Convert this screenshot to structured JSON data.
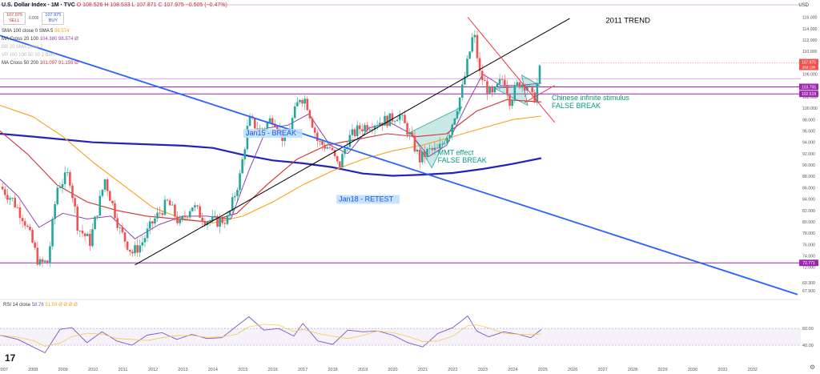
{
  "header": {
    "title": "U.S. Dollar Index · 1M · TVC",
    "ohlc": "O 108.526  H 108.533  L 107.871  C 107.975  −0.505 (−0.47%)",
    "sell_price": "107.975",
    "sell_label": "SELL",
    "spread": "0.000",
    "buy_price": "107.975",
    "buy_label": "BUY",
    "currency": "USD"
  },
  "indicators": [
    {
      "label": "SMA 100 close 0 SMA 5",
      "value": "98.574",
      "color": "#f7a21b"
    },
    {
      "label": "MA Cross 20 100",
      "value": "104.380  98.574  Ø",
      "color": "#8e44ad"
    },
    {
      "label": "BB 20 SMA close 2",
      "value": "",
      "color": "#bbbbbb"
    },
    {
      "label": "VP 100 100 50 30 2 Both",
      "value": "",
      "color": "#bbbbbb"
    },
    {
      "label": "MA Cross 50 200",
      "value": "101.097  91.159  Ø",
      "color": "#d32f2f"
    }
  ],
  "rsi": {
    "label": "RSI 14 close",
    "value": "58.76",
    "extra": "51.59  Ø  Ø  Ø  Ø",
    "levels": [
      "60.00",
      "40.00"
    ]
  },
  "chart_data": {
    "type": "line",
    "symbol": "U.S. Dollar Index",
    "timeframe": "1M",
    "ylim": [
      66.6,
      118.2
    ],
    "y_ticks": [
      67.9,
      69.3,
      72.0,
      74.0,
      76.0,
      78.0,
      80.0,
      82.0,
      84.0,
      86.0,
      88.0,
      90.0,
      92.0,
      94.0,
      96.0,
      98.0,
      100.0,
      102.0,
      104.0,
      106.0,
      108.0,
      110.0,
      112.0,
      114.0,
      116.0
    ],
    "x_ticks": [
      "2007",
      "2008",
      "2009",
      "2010",
      "2011",
      "2012",
      "2013",
      "2014",
      "2015",
      "2016",
      "2017",
      "2018",
      "2019",
      "2020",
      "2021",
      "2022",
      "2023",
      "2024",
      "2025",
      "2026",
      "2027",
      "2028",
      "2029",
      "2030",
      "2031",
      "2032"
    ],
    "xlim": [
      2006.9,
      2033.5
    ],
    "price": {
      "x": [
        2006.9,
        2007.3,
        2007.7,
        2008.0,
        2008.2,
        2008.5,
        2008.8,
        2009.2,
        2009.5,
        2009.9,
        2010.4,
        2010.9,
        2011.3,
        2011.6,
        2012.0,
        2012.5,
        2012.9,
        2013.3,
        2013.7,
        2014.1,
        2014.5,
        2014.9,
        2015.2,
        2015.6,
        2016.0,
        2016.4,
        2016.9,
        2017.1,
        2017.5,
        2017.9,
        2018.2,
        2018.5,
        2018.9,
        2019.4,
        2019.9,
        2020.2,
        2020.5,
        2020.9,
        2021.2,
        2021.5,
        2021.9,
        2022.3,
        2022.7,
        2022.9,
        2023.3,
        2023.7,
        2023.9,
        2024.2,
        2024.5,
        2024.7,
        2024.95
      ],
      "y": [
        86.2,
        84.0,
        80.5,
        76.0,
        72.5,
        73.0,
        86.0,
        88.5,
        79.0,
        76.5,
        87.5,
        78.5,
        74.5,
        76.0,
        80.0,
        83.5,
        79.5,
        83.0,
        80.5,
        80.0,
        80.5,
        88.0,
        98.0,
        96.0,
        98.5,
        94.0,
        102.0,
        101.5,
        94.0,
        93.0,
        89.5,
        94.5,
        96.5,
        97.5,
        98.0,
        99.0,
        96.0,
        91.0,
        92.5,
        92.5,
        96.0,
        103.0,
        113.5,
        106.0,
        102.0,
        105.5,
        101.5,
        104.5,
        104.0,
        101.0,
        108.0
      ]
    },
    "sma100": {
      "x": [
        2006.9,
        2008.0,
        2009.0,
        2010.0,
        2011.0,
        2012.0,
        2013.0,
        2014.0,
        2015.0,
        2016.0,
        2017.0,
        2018.0,
        2019.0,
        2020.0,
        2021.0,
        2022.0,
        2023.0,
        2024.0,
        2024.95
      ],
      "y": [
        100.5,
        98.5,
        95.0,
        90.5,
        86.5,
        82.5,
        80.5,
        79.8,
        81.0,
        83.5,
        86.5,
        89.0,
        91.0,
        92.5,
        93.5,
        95.0,
        96.5,
        98.0,
        98.6
      ]
    },
    "ma20": {
      "x": [
        2006.9,
        2007.5,
        2008.2,
        2009.0,
        2009.8,
        2010.6,
        2011.4,
        2012.2,
        2013.0,
        2013.8,
        2014.6,
        2015.2,
        2015.8,
        2016.5,
        2017.2,
        2017.9,
        2018.5,
        2019.2,
        2019.9,
        2020.6,
        2021.2,
        2021.8,
        2022.5,
        2023.0,
        2023.6,
        2024.2,
        2024.95
      ],
      "y": [
        87.5,
        84.5,
        79.0,
        81.5,
        80.5,
        81.0,
        77.0,
        79.5,
        81.0,
        81.0,
        80.5,
        89.0,
        96.5,
        97.0,
        99.0,
        93.5,
        92.0,
        96.5,
        97.5,
        95.5,
        91.5,
        93.5,
        101.0,
        106.0,
        104.0,
        104.0,
        104.4
      ]
    },
    "ma50": {
      "x": [
        2006.9,
        2007.8,
        2008.8,
        2009.8,
        2010.8,
        2011.8,
        2012.8,
        2013.8,
        2014.8,
        2015.8,
        2016.8,
        2017.8,
        2018.8,
        2019.8,
        2020.8,
        2021.8,
        2022.8,
        2023.8,
        2024.95
      ],
      "y": [
        96.0,
        92.0,
        86.5,
        83.5,
        82.0,
        81.0,
        80.5,
        80.0,
        81.5,
        86.5,
        91.0,
        93.5,
        94.5,
        95.5,
        95.0,
        95.5,
        99.5,
        101.5,
        101.1
      ]
    },
    "ma200": {
      "x": [
        2006.9,
        2008.0,
        2009.0,
        2010.0,
        2011.0,
        2012.0,
        2013.0,
        2014.0,
        2015.0,
        2016.0,
        2017.0,
        2018.0,
        2019.0,
        2020.0,
        2021.0,
        2022.0,
        2023.0,
        2024.0,
        2024.95
      ],
      "y": [
        95.5,
        95.0,
        94.5,
        94.0,
        93.8,
        93.6,
        93.4,
        93.0,
        91.8,
        90.8,
        90.3,
        89.6,
        88.5,
        88.1,
        88.3,
        88.6,
        89.3,
        90.2,
        91.2
      ]
    },
    "rsi_series": {
      "x": [
        2006.9,
        2007.5,
        2008.0,
        2008.4,
        2008.9,
        2009.3,
        2009.8,
        2010.3,
        2010.8,
        2011.3,
        2011.8,
        2012.3,
        2012.8,
        2013.3,
        2013.8,
        2014.3,
        2014.8,
        2015.2,
        2015.7,
        2016.2,
        2016.7,
        2017.0,
        2017.5,
        2018.0,
        2018.5,
        2019.0,
        2019.5,
        2020.0,
        2020.5,
        2021.0,
        2021.5,
        2022.0,
        2022.5,
        2022.8,
        2023.2,
        2023.7,
        2024.2,
        2024.6,
        2024.95
      ],
      "y": [
        52,
        47,
        38,
        31,
        59,
        61,
        43,
        56,
        45,
        40,
        52,
        55,
        47,
        53,
        48,
        49,
        63,
        74,
        58,
        60,
        51,
        66,
        45,
        41,
        58,
        56,
        57,
        52,
        43,
        38,
        54,
        61,
        75,
        57,
        50,
        56,
        53,
        49,
        58.76
      ]
    },
    "horizontal_levels": [
      {
        "y": 103.755,
        "label": "103.755",
        "color": "#9c27b0"
      },
      {
        "y": 102.519,
        "label": "102.519",
        "color": "#9c27b0"
      },
      {
        "y": 72.771,
        "label": "72.771",
        "color": "#9c27b0"
      },
      {
        "y": 105.2,
        "label": "",
        "color": "#c678dd"
      }
    ],
    "last_price": {
      "y": 107.975,
      "label": "107.975",
      "sublabel": "26d 13h",
      "color": "#ef5350"
    },
    "trendlines": [
      {
        "name": "2011 TREND",
        "x": [
          2011.4,
          2025.9
        ],
        "y": [
          72.4,
          115.8
        ],
        "color": "#000000"
      },
      {
        "name": "long-term blue",
        "x": [
          2006.9,
          2033.5
        ],
        "y": [
          112.8,
          67.2
        ],
        "color": "#2962ff"
      },
      {
        "name": "red wedge top",
        "x": [
          2022.5,
          2025.4
        ],
        "y": [
          116.0,
          97.5
        ],
        "color": "#f23645"
      },
      {
        "name": "red wedge bottom",
        "x": [
          2024.4,
          2025.4
        ],
        "y": [
          101.0,
          104.0
        ],
        "color": "#f23645"
      }
    ],
    "annotations": [
      {
        "text": "2011 TREND",
        "x": 2027.1,
        "y": 115.0,
        "style": "plain"
      },
      {
        "text": "Jan15 - BREAK",
        "x": 2015.1,
        "y": 95.2,
        "style": "box"
      },
      {
        "text": "Jan18 - RETEST",
        "x": 2018.2,
        "y": 83.6,
        "style": "box"
      },
      {
        "text": "Chinese infinite stimulus",
        "x": 2025.3,
        "y": 101.4,
        "style": "green"
      },
      {
        "text": "FALSE BREAK",
        "x": 2025.3,
        "y": 100.0,
        "style": "green"
      },
      {
        "text": "MMT effect",
        "x": 2021.5,
        "y": 91.8,
        "style": "green"
      },
      {
        "text": "FALSE BREAK",
        "x": 2021.5,
        "y": 90.4,
        "style": "green"
      }
    ],
    "grid": false,
    "legend_position": "top-left"
  }
}
